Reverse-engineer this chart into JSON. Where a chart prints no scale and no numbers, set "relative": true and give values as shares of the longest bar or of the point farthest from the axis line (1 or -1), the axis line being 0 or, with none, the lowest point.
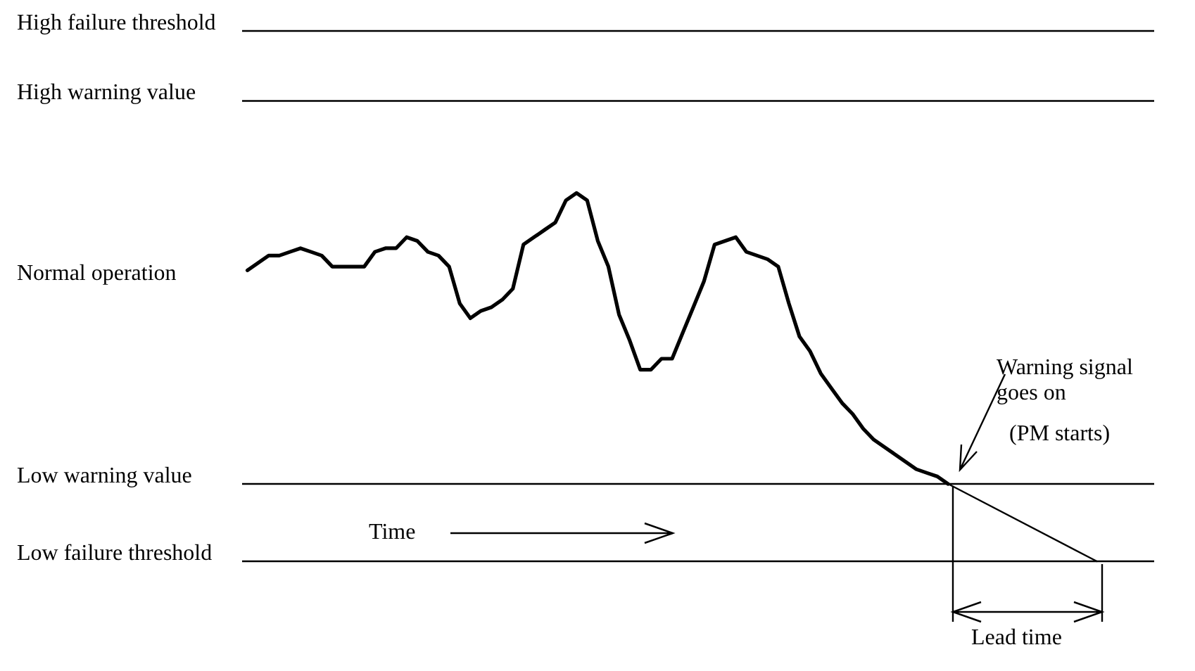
{
  "chart_data": {
    "type": "line",
    "relative": true,
    "categories": [
      null,
      null,
      null,
      null,
      null,
      null,
      null,
      null,
      null,
      null,
      null,
      null,
      null,
      null,
      null,
      null,
      null,
      null,
      null,
      null,
      null,
      null,
      null,
      null,
      null,
      null,
      null,
      null,
      null,
      null,
      null,
      null,
      null,
      null,
      null,
      null,
      null,
      null,
      null,
      null,
      null,
      null,
      null,
      null,
      null,
      null,
      null,
      null,
      null,
      null,
      null,
      null,
      null,
      null,
      null,
      null,
      null,
      null,
      null,
      null,
      null,
      null,
      null,
      null,
      null,
      null,
      null,
      null,
      null,
      null,
      null,
      null,
      null,
      null,
      null,
      null,
      null,
      null,
      null,
      null,
      null
    ],
    "series": [
      {
        "color": "#000000",
        "values": [
          0.79,
          0.81,
          0.83,
          0.83,
          0.84,
          0.85,
          0.84,
          0.83,
          0.8,
          0.8,
          0.8,
          0.8,
          0.84,
          0.85,
          0.85,
          0.88,
          0.87,
          0.84,
          0.83,
          0.8,
          0.7,
          0.66,
          0.68,
          0.69,
          0.71,
          0.74,
          0.86,
          0.88,
          0.9,
          0.92,
          0.98,
          1.0,
          0.98,
          0.87,
          0.8,
          0.67,
          0.6,
          0.52,
          0.52,
          0.55,
          0.55,
          0.62,
          0.69,
          0.76,
          0.86,
          0.87,
          0.88,
          0.84,
          0.83,
          0.82,
          0.8,
          0.7,
          0.61,
          0.57,
          0.51,
          0.47,
          0.43,
          0.4,
          0.36,
          0.33,
          0.31,
          0.29,
          0.27,
          0.25,
          0.24,
          0.23,
          0.21,
          null,
          null,
          null,
          null,
          null,
          null,
          null,
          null,
          null,
          null,
          null,
          null,
          null,
          null
        ]
      },
      {
        "type": "line",
        "color": "#000000",
        "values": [
          null,
          null,
          null,
          null,
          null,
          null,
          null,
          null,
          null,
          null,
          null,
          null,
          null,
          null,
          null,
          null,
          null,
          null,
          null,
          null,
          null,
          null,
          null,
          null,
          null,
          null,
          null,
          null,
          null,
          null,
          null,
          null,
          null,
          null,
          null,
          null,
          null,
          null,
          null,
          null,
          null,
          null,
          null,
          null,
          null,
          null,
          null,
          null,
          null,
          null,
          null,
          null,
          null,
          null,
          null,
          null,
          null,
          null,
          null,
          null,
          null,
          null,
          null,
          null,
          null,
          null,
          0.21,
          null,
          null,
          null,
          null,
          null,
          null,
          null,
          null,
          null,
          null,
          null,
          null,
          null,
          0
        ]
      }
    ],
    "ref_lines": [
      {
        "axis": "y",
        "value": 1.44,
        "label": "High failure threshold",
        "color": "#000000"
      },
      {
        "axis": "y",
        "value": 1.25,
        "label": "High warning value",
        "color": "#000000"
      },
      {
        "axis": "y",
        "value": 0.21,
        "label": "Low warning value",
        "color": "#000000"
      },
      {
        "axis": "y",
        "value": 0,
        "label": "Low failure threshold",
        "color": "#000000"
      }
    ],
    "annotations": [
      "Normal operation",
      "Warning signal goes on",
      "(PM starts)",
      "Time",
      "Lead time"
    ]
  }
}
